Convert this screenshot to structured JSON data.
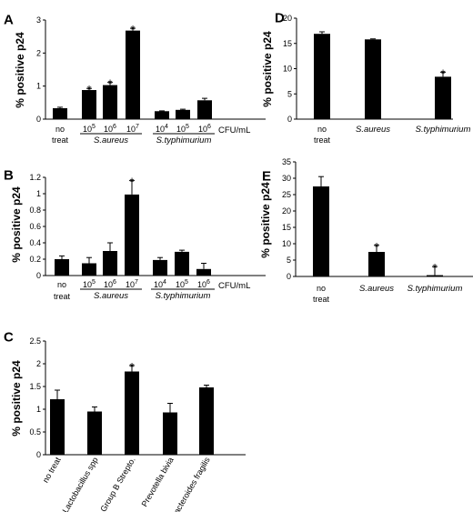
{
  "chart_data": [
    {
      "panel": "A",
      "type": "bar",
      "ylabel": "% positive p24",
      "ylim": [
        0,
        3
      ],
      "yticks": [
        "0",
        "1",
        "2",
        "3"
      ],
      "categories": [
        "no treat",
        "10^5",
        "10^6",
        "10^7",
        "10^4",
        "10^5",
        "10^6"
      ],
      "values": [
        0.33,
        0.88,
        1.03,
        2.68,
        0.24,
        0.28,
        0.57
      ],
      "errors": [
        0.03,
        0.05,
        0.08,
        0.07,
        0.01,
        0.02,
        0.06
      ],
      "significant": [
        false,
        true,
        true,
        true,
        false,
        false,
        false
      ],
      "groups": [
        "S.aureus",
        "S.typhimurium"
      ],
      "xunit": "CFU/mL"
    },
    {
      "panel": "B",
      "type": "bar",
      "ylabel": "% positive p24",
      "ylim": [
        0,
        1.2
      ],
      "yticks": [
        "0",
        "0.2",
        "0.4",
        "0.6",
        "0.8",
        "1",
        "1.2"
      ],
      "categories": [
        "no treat",
        "10^5",
        "10^6",
        "10^7",
        "10^4",
        "10^5",
        "10^6"
      ],
      "values": [
        0.2,
        0.15,
        0.3,
        0.99,
        0.19,
        0.29,
        0.08
      ],
      "errors": [
        0.04,
        0.07,
        0.1,
        0.17,
        0.03,
        0.02,
        0.07
      ],
      "significant": [
        false,
        false,
        false,
        true,
        false,
        false,
        false
      ],
      "groups": [
        "S.aureus",
        "S.typhimurium"
      ],
      "xunit": "CFU/mL"
    },
    {
      "panel": "C",
      "type": "bar",
      "ylabel": "% positive p24",
      "ylim": [
        0,
        2.5
      ],
      "yticks": [
        "0",
        "0.5",
        "1",
        "1.5",
        "2",
        "2.5"
      ],
      "categories": [
        "no treat",
        "Lactobacillus spp",
        "Group B Strepto.",
        "Prevotella bivia",
        "Bacteroides fragilis"
      ],
      "values": [
        1.22,
        0.95,
        1.83,
        0.93,
        1.48
      ],
      "errors": [
        0.2,
        0.1,
        0.13,
        0.2,
        0.05
      ],
      "significant": [
        false,
        false,
        true,
        false,
        false
      ]
    },
    {
      "panel": "D",
      "type": "bar",
      "ylabel": "% positive p24",
      "ylim": [
        0,
        20
      ],
      "yticks": [
        "0",
        "5",
        "10",
        "15",
        "20"
      ],
      "categories": [
        "no treat",
        "S.aureus",
        "S.typhimurium"
      ],
      "values": [
        16.9,
        15.8,
        8.4
      ],
      "errors": [
        0.4,
        0.1,
        0.9
      ],
      "significant": [
        false,
        false,
        true
      ]
    },
    {
      "panel": "E",
      "type": "bar",
      "ylabel": "% positive p24",
      "ylim": [
        0,
        35
      ],
      "yticks": [
        "0",
        "5",
        "10",
        "15",
        "20",
        "25",
        "30",
        "35"
      ],
      "categories": [
        "no treat",
        "S.aureus",
        "S.typhimurium"
      ],
      "values": [
        27.5,
        7.5,
        0.4
      ],
      "errors": [
        3.0,
        2.0,
        2.6
      ],
      "significant": [
        false,
        true,
        true
      ]
    }
  ]
}
